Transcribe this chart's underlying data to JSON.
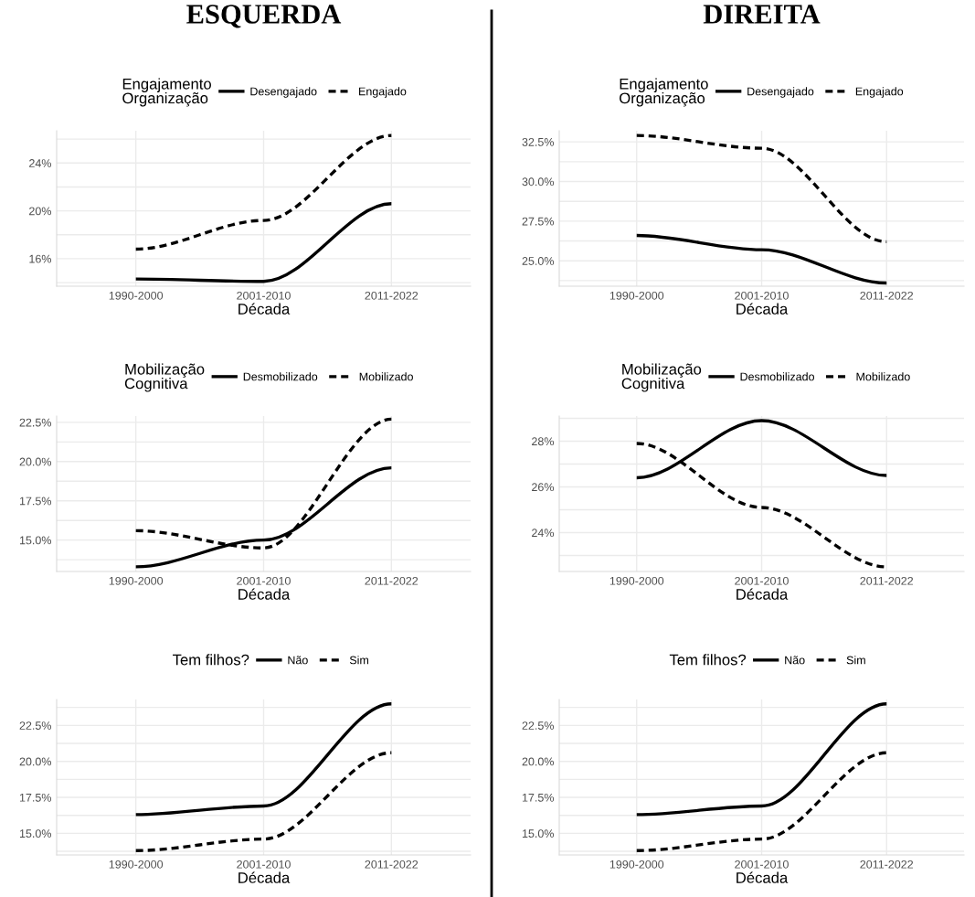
{
  "chart_data": [
    {
      "type": "line",
      "title": "ESQUERDA",
      "xlabel": "Década",
      "legend_title": "Engajamento\nOrganização",
      "legend": "top",
      "grid": true,
      "categories": [
        "1990-2000",
        "2001-2010",
        "2011-2022"
      ],
      "ylim": [
        13.7,
        26.7
      ],
      "yticks": [
        {
          "value": 14,
          "label": null
        },
        {
          "value": 16,
          "label": "16%"
        },
        {
          "value": 18,
          "label": null
        },
        {
          "value": 20,
          "label": "20%"
        },
        {
          "value": 22,
          "label": null
        },
        {
          "value": 24,
          "label": "24%"
        },
        {
          "value": 26,
          "label": null
        }
      ],
      "series": [
        {
          "name": "Desengajado",
          "color": "#000000",
          "line_style": "solid",
          "values": [
            14.3,
            14.1,
            20.6
          ]
        },
        {
          "name": "Engajado",
          "color": "#000000",
          "line_style": "dashed",
          "values": [
            16.8,
            19.2,
            26.3
          ]
        }
      ]
    },
    {
      "type": "line",
      "title": "DIREITA",
      "xlabel": "Década",
      "legend_title": "Engajamento\nOrganização",
      "legend": "top",
      "grid": true,
      "categories": [
        "1990-2000",
        "2001-2010",
        "2011-2022"
      ],
      "ylim": [
        23.4,
        33.2
      ],
      "yticks": [
        {
          "value": 23.75,
          "label": null
        },
        {
          "value": 25,
          "label": "25.0%"
        },
        {
          "value": 26.25,
          "label": null
        },
        {
          "value": 27.5,
          "label": "27.5%"
        },
        {
          "value": 28.75,
          "label": null
        },
        {
          "value": 30,
          "label": "30.0%"
        },
        {
          "value": 31.25,
          "label": null
        },
        {
          "value": 32.5,
          "label": "32.5%"
        }
      ],
      "series": [
        {
          "name": "Desengajado",
          "color": "#000000",
          "line_style": "solid",
          "values": [
            26.6,
            25.7,
            23.6
          ]
        },
        {
          "name": "Engajado",
          "color": "#000000",
          "line_style": "dashed",
          "values": [
            32.9,
            32.1,
            26.2
          ]
        }
      ]
    },
    {
      "type": "line",
      "xlabel": "Década",
      "legend_title": "Mobilização\nCognitiva",
      "legend": "top",
      "grid": true,
      "categories": [
        "1990-2000",
        "2001-2010",
        "2011-2022"
      ],
      "ylim": [
        13.0,
        22.9
      ],
      "yticks": [
        {
          "value": 13.75,
          "label": null
        },
        {
          "value": 15,
          "label": "15.0%"
        },
        {
          "value": 16.25,
          "label": null
        },
        {
          "value": 17.5,
          "label": "17.5%"
        },
        {
          "value": 18.75,
          "label": null
        },
        {
          "value": 20,
          "label": "20.0%"
        },
        {
          "value": 21.25,
          "label": null
        },
        {
          "value": 22.5,
          "label": "22.5%"
        }
      ],
      "series": [
        {
          "name": "Desmobilizado",
          "color": "#000000",
          "line_style": "solid",
          "values": [
            13.3,
            15.0,
            19.6
          ]
        },
        {
          "name": "Mobilizado",
          "color": "#000000",
          "line_style": "dashed",
          "values": [
            15.6,
            14.5,
            22.7
          ]
        }
      ]
    },
    {
      "type": "line",
      "xlabel": "Década",
      "legend_title": "Mobilização\nCognitiva",
      "legend": "top",
      "grid": true,
      "categories": [
        "1990-2000",
        "2001-2010",
        "2011-2022"
      ],
      "ylim": [
        22.3,
        29.1
      ],
      "yticks": [
        {
          "value": 23,
          "label": null
        },
        {
          "value": 24,
          "label": "24%"
        },
        {
          "value": 25,
          "label": null
        },
        {
          "value": 26,
          "label": "26%"
        },
        {
          "value": 27,
          "label": null
        },
        {
          "value": 28,
          "label": "28%"
        },
        {
          "value": 29,
          "label": null
        }
      ],
      "series": [
        {
          "name": "Desmobilizado",
          "color": "#000000",
          "line_style": "solid",
          "values": [
            26.4,
            28.9,
            26.5
          ]
        },
        {
          "name": "Mobilizado",
          "color": "#000000",
          "line_style": "dashed",
          "values": [
            27.9,
            25.1,
            22.5
          ]
        }
      ]
    },
    {
      "type": "line",
      "xlabel": "Década",
      "legend_title": "Tem filhos?",
      "legend": "top",
      "grid": true,
      "categories": [
        "1990-2000",
        "2001-2010",
        "2011-2022"
      ],
      "ylim": [
        13.5,
        24.3
      ],
      "yticks": [
        {
          "value": 13.75,
          "label": null
        },
        {
          "value": 15,
          "label": "15.0%"
        },
        {
          "value": 16.25,
          "label": null
        },
        {
          "value": 17.5,
          "label": "17.5%"
        },
        {
          "value": 18.75,
          "label": null
        },
        {
          "value": 20,
          "label": "20.0%"
        },
        {
          "value": 21.25,
          "label": null
        },
        {
          "value": 22.5,
          "label": "22.5%"
        },
        {
          "value": 23.75,
          "label": null
        }
      ],
      "series": [
        {
          "name": "Não",
          "color": "#000000",
          "line_style": "solid",
          "values": [
            16.3,
            16.9,
            24.0
          ]
        },
        {
          "name": "Sim",
          "color": "#000000",
          "line_style": "dashed",
          "values": [
            13.8,
            14.6,
            20.6
          ]
        }
      ]
    },
    {
      "type": "line",
      "xlabel": "Década",
      "legend_title": "Tem filhos?",
      "legend": "top",
      "grid": true,
      "categories": [
        "1990-2000",
        "2001-2010",
        "2011-2022"
      ],
      "ylim": [
        13.5,
        24.3
      ],
      "yticks": [
        {
          "value": 13.75,
          "label": null
        },
        {
          "value": 15,
          "label": "15.0%"
        },
        {
          "value": 16.25,
          "label": null
        },
        {
          "value": 17.5,
          "label": "17.5%"
        },
        {
          "value": 18.75,
          "label": null
        },
        {
          "value": 20,
          "label": "20.0%"
        },
        {
          "value": 21.25,
          "label": null
        },
        {
          "value": 22.5,
          "label": "22.5%"
        },
        {
          "value": 23.75,
          "label": null
        }
      ],
      "series": [
        {
          "name": "Não",
          "color": "#000000",
          "line_style": "solid",
          "values": [
            16.3,
            16.9,
            24.0
          ]
        },
        {
          "name": "Sim",
          "color": "#000000",
          "line_style": "dashed",
          "values": [
            13.8,
            14.6,
            20.6
          ]
        }
      ]
    }
  ]
}
